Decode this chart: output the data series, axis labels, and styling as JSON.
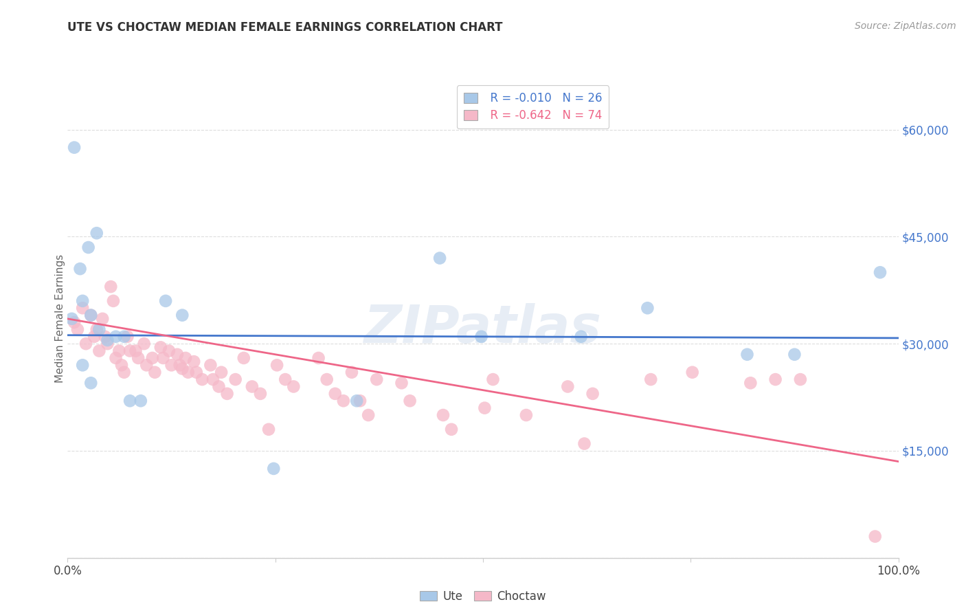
{
  "title": "UTE VS CHOCTAW MEDIAN FEMALE EARNINGS CORRELATION CHART",
  "source": "Source: ZipAtlas.com",
  "ylabel": "Median Female Earnings",
  "yticks": [
    0,
    15000,
    30000,
    45000,
    60000
  ],
  "ytick_labels": [
    "",
    "$15,000",
    "$30,000",
    "$45,000",
    "$60,000"
  ],
  "ylim": [
    0,
    67000
  ],
  "xlim": [
    0.0,
    1.0
  ],
  "legend_blue_r": "R = -0.010",
  "legend_blue_n": "N = 26",
  "legend_pink_r": "R = -0.642",
  "legend_pink_n": "N = 74",
  "blue_color": "#A8C8E8",
  "pink_color": "#F5B8C8",
  "blue_line_color": "#4477CC",
  "pink_line_color": "#EE6688",
  "blue_tick_color": "#4477CC",
  "watermark": "ZIPatlas",
  "blue_points_x": [
    0.008,
    0.035,
    0.025,
    0.015,
    0.005,
    0.018,
    0.028,
    0.038,
    0.048,
    0.058,
    0.018,
    0.028,
    0.068,
    0.075,
    0.088,
    0.118,
    0.138,
    0.248,
    0.348,
    0.448,
    0.498,
    0.618,
    0.698,
    0.818,
    0.875,
    0.978
  ],
  "blue_points_y": [
    57500,
    45500,
    43500,
    40500,
    33500,
    36000,
    34000,
    32000,
    30500,
    31000,
    27000,
    24500,
    31000,
    22000,
    22000,
    36000,
    34000,
    12500,
    22000,
    42000,
    31000,
    31000,
    35000,
    28500,
    28500,
    40000
  ],
  "pink_points_x": [
    0.008,
    0.012,
    0.018,
    0.022,
    0.028,
    0.032,
    0.035,
    0.038,
    0.042,
    0.045,
    0.048,
    0.052,
    0.055,
    0.058,
    0.062,
    0.065,
    0.068,
    0.072,
    0.075,
    0.082,
    0.085,
    0.092,
    0.095,
    0.102,
    0.105,
    0.112,
    0.115,
    0.122,
    0.125,
    0.132,
    0.135,
    0.138,
    0.142,
    0.145,
    0.152,
    0.155,
    0.162,
    0.172,
    0.175,
    0.182,
    0.185,
    0.192,
    0.202,
    0.212,
    0.222,
    0.232,
    0.242,
    0.252,
    0.262,
    0.272,
    0.302,
    0.312,
    0.322,
    0.332,
    0.342,
    0.352,
    0.362,
    0.372,
    0.402,
    0.412,
    0.452,
    0.462,
    0.502,
    0.512,
    0.552,
    0.602,
    0.622,
    0.632,
    0.702,
    0.752,
    0.822,
    0.852,
    0.882,
    0.972
  ],
  "pink_points_y": [
    33000,
    32000,
    35000,
    30000,
    34000,
    31000,
    32000,
    29000,
    33500,
    31000,
    30000,
    38000,
    36000,
    28000,
    29000,
    27000,
    26000,
    31000,
    29000,
    29000,
    28000,
    30000,
    27000,
    28000,
    26000,
    29500,
    28000,
    29000,
    27000,
    28500,
    27000,
    26500,
    28000,
    26000,
    27500,
    26000,
    25000,
    27000,
    25000,
    24000,
    26000,
    23000,
    25000,
    28000,
    24000,
    23000,
    18000,
    27000,
    25000,
    24000,
    28000,
    25000,
    23000,
    22000,
    26000,
    22000,
    20000,
    25000,
    24500,
    22000,
    20000,
    18000,
    21000,
    25000,
    20000,
    24000,
    16000,
    23000,
    25000,
    26000,
    24500,
    25000,
    25000,
    3000
  ],
  "blue_trend_x": [
    0.0,
    1.0
  ],
  "blue_trend_y": [
    31200,
    30800
  ],
  "pink_trend_x": [
    0.0,
    1.0
  ],
  "pink_trend_y": [
    33500,
    13500
  ]
}
